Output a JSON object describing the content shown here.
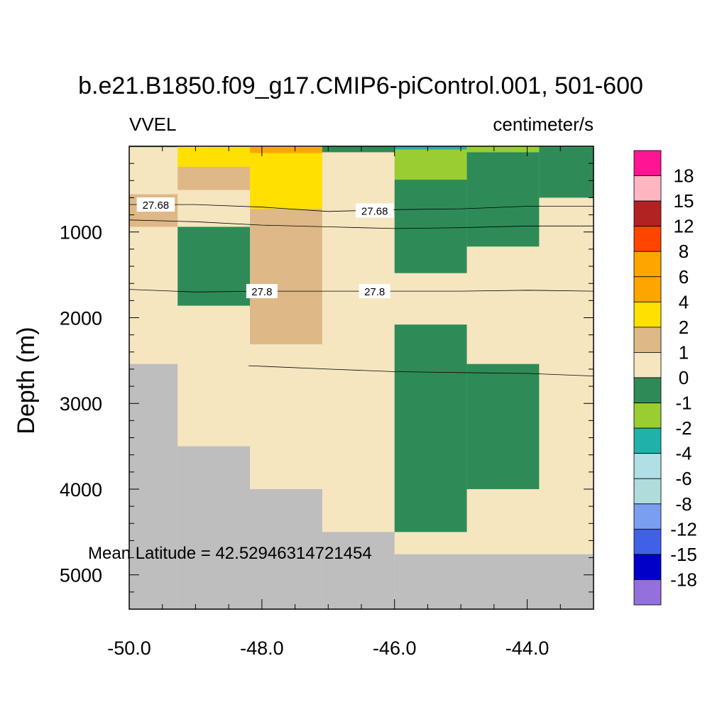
{
  "chart_data": {
    "type": "heatmap",
    "title": "b.e21.B1850.f09_g17.CMIP6-piControl.001, 501-600",
    "left_label": "VVEL",
    "right_label": "centimeter/s",
    "ylabel": "Depth (m)",
    "xlabel": "",
    "xlim": [
      -50.0,
      -43.0
    ],
    "ylim": [
      5400,
      0
    ],
    "x_ticks": [
      -50.0,
      -48.0,
      -46.0,
      -44.0
    ],
    "x_tick_labels": [
      "-50.0",
      "-48.0",
      "-46.0",
      "-44.0"
    ],
    "y_ticks": [
      1000,
      2000,
      3000,
      4000,
      5000
    ],
    "y_tick_labels": [
      "1000",
      "2000",
      "3000",
      "4000",
      "5000"
    ],
    "annotation": "Mean Latitude = 42.52946314721454",
    "colorbar": {
      "labels": [
        "18",
        "15",
        "12",
        "8",
        "6",
        "4",
        "2",
        "1",
        "0",
        "-1",
        "-2",
        "-4",
        "-6",
        "-8",
        "-12",
        "-15",
        "-18"
      ],
      "colors": [
        "#ff1493",
        "#ffb6c1",
        "#b22222",
        "#ff4500",
        "#ffa500",
        "#ffa500",
        "#ffe000",
        "#deb887",
        "#f5e6c0",
        "#2e8b57",
        "#9acd32",
        "#20b2aa",
        "#b0e0e6",
        "#b0dcdc",
        "#7b9ff0",
        "#4060e8",
        "#0000c8",
        "#9370db"
      ]
    },
    "missing_color": "#bebebe",
    "cells": [
      {
        "x": [
          -50.0,
          -43.0
        ],
        "y": [
          0,
          5400
        ],
        "value": "0 to 1"
      },
      {
        "x": [
          -50.0,
          -49.27
        ],
        "y": [
          2540,
          5400
        ],
        "value": "missing"
      },
      {
        "x": [
          -49.27,
          -48.18
        ],
        "y": [
          3500,
          5400
        ],
        "value": "missing"
      },
      {
        "x": [
          -48.18,
          -47.09
        ],
        "y": [
          4000,
          5400
        ],
        "value": "missing"
      },
      {
        "x": [
          -47.09,
          -46.0
        ],
        "y": [
          4500,
          5400
        ],
        "value": "missing"
      },
      {
        "x": [
          -46.0,
          -43.0
        ],
        "y": [
          4760,
          5400
        ],
        "value": "missing"
      },
      {
        "x": [
          -50.0,
          -49.27
        ],
        "y": [
          0,
          10
        ],
        "value": "-1 to 0"
      },
      {
        "x": [
          -49.27,
          -48.18
        ],
        "y": [
          10,
          240
        ],
        "value": "2 to 4"
      },
      {
        "x": [
          -49.27,
          -48.18
        ],
        "y": [
          240,
          510
        ],
        "value": "1 to 2"
      },
      {
        "x": [
          -48.18,
          -47.09
        ],
        "y": [
          10,
          80
        ],
        "value": "4 to 6"
      },
      {
        "x": [
          -48.18,
          -47.09
        ],
        "y": [
          80,
          730
        ],
        "value": "2 to 4"
      },
      {
        "x": [
          -48.18,
          -47.09
        ],
        "y": [
          730,
          2310
        ],
        "value": "1 to 2"
      },
      {
        "x": [
          -47.09,
          -46.0
        ],
        "y": [
          0,
          70
        ],
        "value": "-1 to 0"
      },
      {
        "x": [
          -46.0,
          -44.91
        ],
        "y": [
          0,
          40
        ],
        "value": "-4 to -2"
      },
      {
        "x": [
          -46.0,
          -44.91
        ],
        "y": [
          40,
          390
        ],
        "value": "-2 to -1"
      },
      {
        "x": [
          -44.91,
          -43.82
        ],
        "y": [
          0,
          70
        ],
        "value": "-2 to -1"
      },
      {
        "x": [
          -43.82,
          -43.0
        ],
        "y": [
          0,
          10
        ],
        "value": "-1 to 0"
      },
      {
        "x": [
          -50.0,
          -49.27
        ],
        "y": [
          560,
          940
        ],
        "value": "1 to 2"
      },
      {
        "x": [
          -49.27,
          -48.18
        ],
        "y": [
          940,
          1860
        ],
        "value": "-1 to 0"
      },
      {
        "x": [
          -46.0,
          -44.91
        ],
        "y": [
          390,
          1480
        ],
        "value": "-1 to 0"
      },
      {
        "x": [
          -44.91,
          -43.82
        ],
        "y": [
          70,
          1170
        ],
        "value": "-1 to 0"
      },
      {
        "x": [
          -43.82,
          -43.0
        ],
        "y": [
          10,
          600
        ],
        "value": "-1 to 0"
      },
      {
        "x": [
          -46.0,
          -44.91
        ],
        "y": [
          2080,
          4500
        ],
        "value": "-1 to 0"
      },
      {
        "x": [
          -44.91,
          -43.82
        ],
        "y": [
          2540,
          4000
        ],
        "value": "-1 to 0"
      }
    ],
    "contours": [
      {
        "label": "27.68",
        "points": [
          [
            -50.0,
            680
          ],
          [
            -49.0,
            680
          ],
          [
            -48.0,
            710
          ],
          [
            -47.0,
            760
          ],
          [
            -46.0,
            740
          ],
          [
            -45.0,
            730
          ],
          [
            -44.0,
            700
          ],
          [
            -43.0,
            700
          ]
        ],
        "label_at": [
          [
            -49.6,
            680
          ],
          [
            -46.3,
            750
          ]
        ]
      },
      {
        "label": "",
        "points": [
          [
            -50.0,
            860
          ],
          [
            -49.0,
            880
          ],
          [
            -48.0,
            920
          ],
          [
            -47.0,
            940
          ],
          [
            -46.0,
            960
          ],
          [
            -45.0,
            950
          ],
          [
            -44.0,
            930
          ],
          [
            -43.0,
            930
          ]
        ],
        "label_at": []
      },
      {
        "label": "27.8",
        "points": [
          [
            -50.0,
            1670
          ],
          [
            -49.0,
            1700
          ],
          [
            -48.0,
            1690
          ],
          [
            -47.0,
            1690
          ],
          [
            -46.0,
            1690
          ],
          [
            -45.0,
            1690
          ],
          [
            -44.0,
            1680
          ],
          [
            -43.0,
            1690
          ]
        ],
        "label_at": [
          [
            -48.0,
            1690
          ],
          [
            -46.3,
            1690
          ]
        ]
      },
      {
        "label": "",
        "points": [
          [
            -48.2,
            2560
          ],
          [
            -47.0,
            2600
          ],
          [
            -46.0,
            2630
          ],
          [
            -45.0,
            2640
          ],
          [
            -44.0,
            2650
          ],
          [
            -43.0,
            2680
          ]
        ],
        "label_at": []
      }
    ]
  }
}
